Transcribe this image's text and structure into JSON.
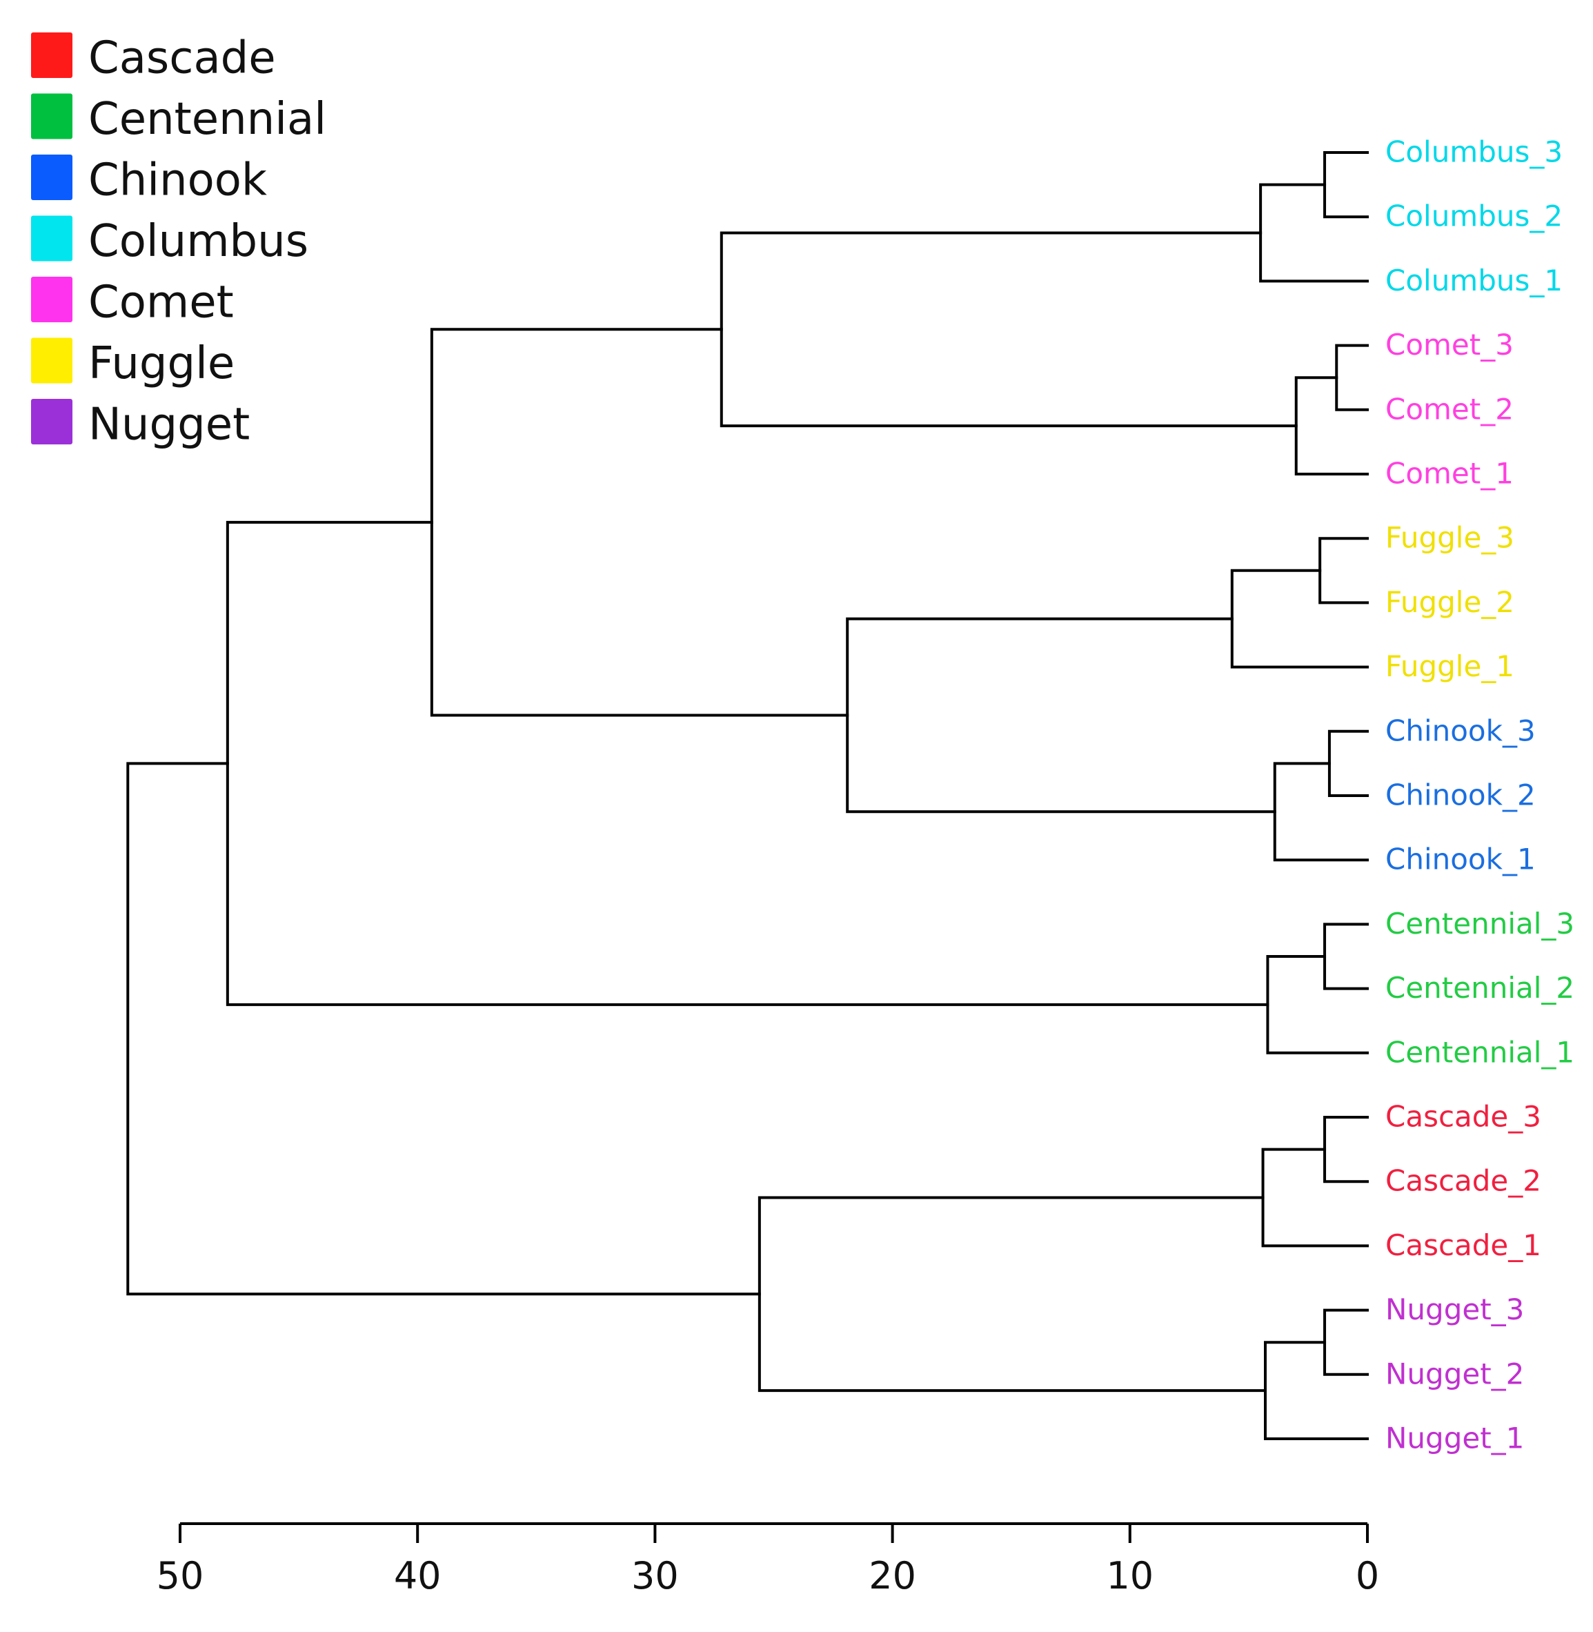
{
  "chart_data": {
    "type": "dendrogram",
    "title": "",
    "xlabel": "",
    "ylabel": "",
    "orientation": "leaves-right",
    "xlim": [
      50,
      0
    ],
    "xticks": [
      50,
      40,
      30,
      20,
      10,
      0
    ],
    "legend": {
      "position": "top-left",
      "entries": [
        {
          "label": "Cascade",
          "color": "#ff1a1a"
        },
        {
          "label": "Centennial",
          "color": "#00c040"
        },
        {
          "label": "Chinook",
          "color": "#0a5cff"
        },
        {
          "label": "Columbus",
          "color": "#00e5ee"
        },
        {
          "label": "Comet",
          "color": "#ff33ee"
        },
        {
          "label": "Fuggle",
          "color": "#ffee00"
        },
        {
          "label": "Nugget",
          "color": "#9b30d9"
        }
      ]
    },
    "leaves": [
      {
        "label": "Columbus_3",
        "color": "#00d8e8"
      },
      {
        "label": "Columbus_2",
        "color": "#00d8e8"
      },
      {
        "label": "Columbus_1",
        "color": "#00d8e8"
      },
      {
        "label": "Comet_3",
        "color": "#ff40e0"
      },
      {
        "label": "Comet_2",
        "color": "#ff40e0"
      },
      {
        "label": "Comet_1",
        "color": "#ff40e0"
      },
      {
        "label": "Fuggle_3",
        "color": "#f0e000"
      },
      {
        "label": "Fuggle_2",
        "color": "#f0e000"
      },
      {
        "label": "Fuggle_1",
        "color": "#f0e000"
      },
      {
        "label": "Chinook_3",
        "color": "#1a6ee0"
      },
      {
        "label": "Chinook_2",
        "color": "#1a6ee0"
      },
      {
        "label": "Chinook_1",
        "color": "#1a6ee0"
      },
      {
        "label": "Centennial_3",
        "color": "#22cc44"
      },
      {
        "label": "Centennial_2",
        "color": "#22cc44"
      },
      {
        "label": "Centennial_1",
        "color": "#22cc44"
      },
      {
        "label": "Cascade_3",
        "color": "#f02040"
      },
      {
        "label": "Cascade_2",
        "color": "#f02040"
      },
      {
        "label": "Cascade_1",
        "color": "#f02040"
      },
      {
        "label": "Nugget_3",
        "color": "#c030d0"
      },
      {
        "label": "Nugget_2",
        "color": "#c030d0"
      },
      {
        "label": "Nugget_1",
        "color": "#c030d0"
      }
    ],
    "merges": [
      {
        "id": "m1",
        "children": [
          "Columbus_3",
          "Columbus_2"
        ],
        "height": 1.8
      },
      {
        "id": "m2",
        "children": [
          "m1",
          "Columbus_1"
        ],
        "height": 4.5
      },
      {
        "id": "m3",
        "children": [
          "Comet_3",
          "Comet_2"
        ],
        "height": 1.3
      },
      {
        "id": "m4",
        "children": [
          "m3",
          "Comet_1"
        ],
        "height": 3.0
      },
      {
        "id": "m5",
        "children": [
          "m2",
          "m4"
        ],
        "height": 27.2
      },
      {
        "id": "m6",
        "children": [
          "Fuggle_3",
          "Fuggle_2"
        ],
        "height": 2.0
      },
      {
        "id": "m7",
        "children": [
          "m6",
          "Fuggle_1"
        ],
        "height": 5.7
      },
      {
        "id": "m8",
        "children": [
          "Chinook_3",
          "Chinook_2"
        ],
        "height": 1.6
      },
      {
        "id": "m9",
        "children": [
          "m8",
          "Chinook_1"
        ],
        "height": 3.9
      },
      {
        "id": "m10",
        "children": [
          "m7",
          "m9"
        ],
        "height": 21.9
      },
      {
        "id": "m11",
        "children": [
          "m5",
          "m10"
        ],
        "height": 39.4
      },
      {
        "id": "m12",
        "children": [
          "Centennial_3",
          "Centennial_2"
        ],
        "height": 1.8
      },
      {
        "id": "m13",
        "children": [
          "m12",
          "Centennial_1"
        ],
        "height": 4.2
      },
      {
        "id": "m14",
        "children": [
          "m11",
          "m13"
        ],
        "height": 48.0
      },
      {
        "id": "m15",
        "children": [
          "Cascade_3",
          "Cascade_2"
        ],
        "height": 1.8
      },
      {
        "id": "m16",
        "children": [
          "m15",
          "Cascade_1"
        ],
        "height": 4.4
      },
      {
        "id": "m17",
        "children": [
          "Nugget_3",
          "Nugget_2"
        ],
        "height": 1.8
      },
      {
        "id": "m18",
        "children": [
          "m17",
          "Nugget_1"
        ],
        "height": 4.3
      },
      {
        "id": "m19",
        "children": [
          "m16",
          "m18"
        ],
        "height": 25.6
      },
      {
        "id": "m20",
        "children": [
          "m14",
          "m19"
        ],
        "height": 52.2
      }
    ]
  }
}
